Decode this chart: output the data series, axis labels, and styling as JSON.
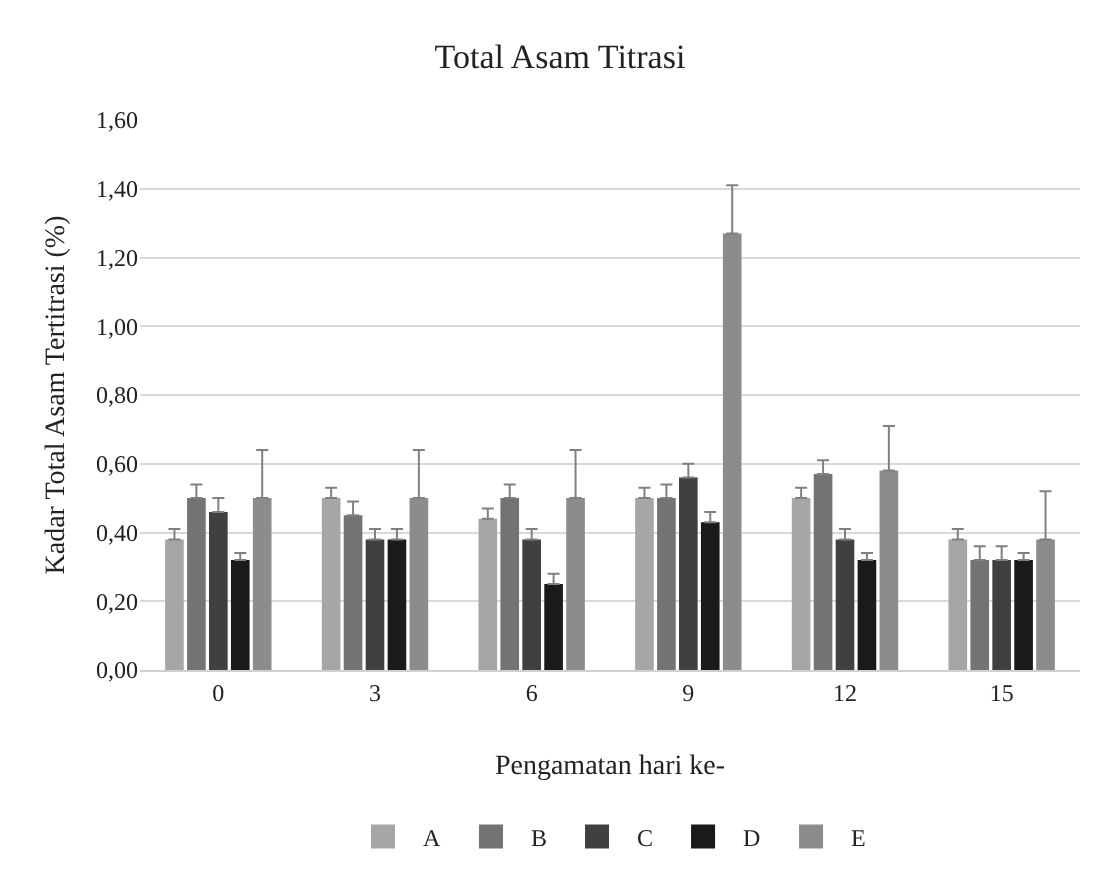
{
  "chart_data": {
    "type": "bar",
    "title": "Total Asam Titrasi",
    "xlabel": "Pengamatan hari ke-",
    "ylabel": "Kadar Total Asam Tertitrasi (%)",
    "categories": [
      "0",
      "3",
      "6",
      "9",
      "12",
      "15"
    ],
    "series": [
      {
        "name": "A",
        "color": "#a6a6a6",
        "values": [
          0.38,
          0.5,
          0.44,
          0.5,
          0.5,
          0.38
        ],
        "errors": [
          0.03,
          0.03,
          0.03,
          0.03,
          0.03,
          0.03
        ]
      },
      {
        "name": "B",
        "color": "#737373",
        "values": [
          0.5,
          0.45,
          0.5,
          0.5,
          0.57,
          0.32
        ],
        "errors": [
          0.04,
          0.04,
          0.04,
          0.04,
          0.04,
          0.04
        ]
      },
      {
        "name": "C",
        "color": "#404040",
        "values": [
          0.46,
          0.38,
          0.38,
          0.56,
          0.38,
          0.32
        ],
        "errors": [
          0.04,
          0.03,
          0.03,
          0.04,
          0.03,
          0.04
        ]
      },
      {
        "name": "D",
        "color": "#1a1a1a",
        "values": [
          0.32,
          0.38,
          0.25,
          0.43,
          0.32,
          0.32
        ],
        "errors": [
          0.02,
          0.03,
          0.03,
          0.03,
          0.02,
          0.02
        ]
      },
      {
        "name": "E",
        "color": "#8c8c8c",
        "values": [
          0.5,
          0.5,
          0.5,
          1.27,
          0.58,
          0.38
        ],
        "errors": [
          0.14,
          0.14,
          0.14,
          0.14,
          0.13,
          0.14
        ]
      }
    ],
    "ylim": [
      0,
      1.6
    ],
    "yticks": [
      {
        "value": 0,
        "label": "0,00"
      },
      {
        "value": 0.2,
        "label": "0,20"
      },
      {
        "value": 0.4,
        "label": "0,40"
      },
      {
        "value": 0.6,
        "label": "0,60"
      },
      {
        "value": 0.8,
        "label": "0,80"
      },
      {
        "value": 1.0,
        "label": "1,00"
      },
      {
        "value": 1.2,
        "label": "1,20"
      },
      {
        "value": 1.4,
        "label": "1,40"
      },
      {
        "value": 1.6,
        "label": "1,60"
      }
    ],
    "grid": "y",
    "legend": "bottom"
  }
}
